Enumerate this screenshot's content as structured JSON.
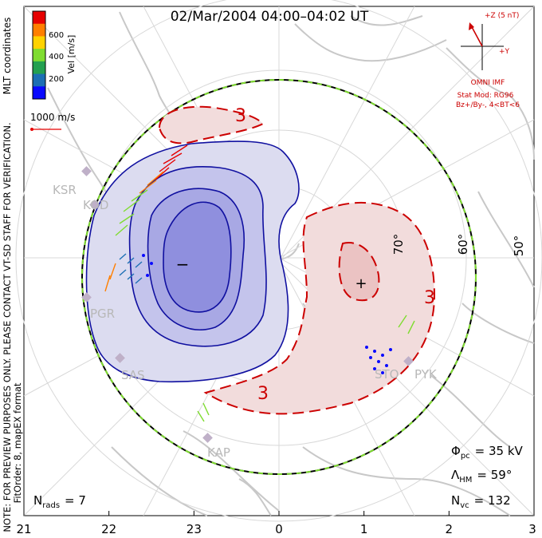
{
  "title": "02/Mar/2004 04:00–04:02 UT",
  "colorbar": {
    "label": "Vel [m/s]",
    "ticks": [
      "600",
      "400",
      "200"
    ],
    "colors": [
      "#e60000",
      "#ff7f00",
      "#ffd200",
      "#7fdc30",
      "#23a050",
      "#1c6fb4",
      "#0a0aff"
    ]
  },
  "coordinate_label": "MLT coordinates",
  "velocity_scale": "1000 m/s",
  "imf": {
    "z_label": "+Z (5 nT)",
    "y_label": "+Y",
    "source": "OMNI IMF",
    "stat_mod": "Stat Mod: RG96",
    "condition": "Bz+/By-, 4<BT<6"
  },
  "note_lines": [
    "NOTE: FOR PREVIEW PURPOSES ONLY. PLEASE CONTACT VT-SD STAFF FOR VERIFICATION.",
    "FitOrder: 8, mapEX format"
  ],
  "latitude_labels": [
    "50°",
    "60°",
    "70°"
  ],
  "contour_labels": [
    "3",
    "3",
    "3"
  ],
  "cell_signs": {
    "dusk": "−",
    "dawn": "+"
  },
  "stations": [
    "KSR",
    "KOD",
    "PGR",
    "SAS",
    "KAP",
    "STO",
    "PYK"
  ],
  "mlt_ticks": [
    "21",
    "22",
    "23",
    "0",
    "1",
    "2",
    "3"
  ],
  "stats": {
    "phi_symbol": "Φ",
    "phi_sub": "pc",
    "phi_value": "= 35 kV",
    "lambda_symbol": "Λ",
    "lambda_sub": "HM",
    "lambda_value": "= 59°",
    "nvc_symbol": "N",
    "nvc_sub": "vc",
    "nvc_value": "= 132",
    "nrads_symbol": "N",
    "nrads_sub": "rads",
    "nrads_value": "= 7"
  }
}
